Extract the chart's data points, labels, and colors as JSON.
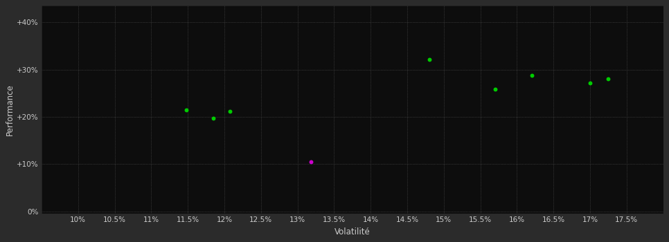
{
  "background_color": "#2b2b2b",
  "plot_bg_color": "#0d0d0d",
  "grid_color": "#555555",
  "xlabel": "Volatilité",
  "ylabel": "Performance",
  "xlim": [
    0.095,
    0.18
  ],
  "ylim": [
    -0.005,
    0.435
  ],
  "xticks": [
    0.1,
    0.105,
    0.11,
    0.115,
    0.12,
    0.125,
    0.13,
    0.135,
    0.14,
    0.145,
    0.15,
    0.155,
    0.16,
    0.165,
    0.17,
    0.175
  ],
  "yticks": [
    0.0,
    0.1,
    0.2,
    0.3,
    0.4
  ],
  "ytick_labels": [
    "0%",
    "+10%",
    "+20%",
    "+30%",
    "+40%"
  ],
  "xtick_labels": [
    "10%",
    "10.5%",
    "11%",
    "11.5%",
    "12%",
    "12.5%",
    "13%",
    "13.5%",
    "14%",
    "14.5%",
    "15%",
    "15.5%",
    "16%",
    "16.5%",
    "17%",
    "17.5%"
  ],
  "green_points": [
    [
      0.1148,
      0.215
    ],
    [
      0.1185,
      0.197
    ],
    [
      0.1208,
      0.211
    ],
    [
      0.148,
      0.322
    ],
    [
      0.157,
      0.258
    ],
    [
      0.162,
      0.287
    ],
    [
      0.17,
      0.272
    ],
    [
      0.1725,
      0.28
    ]
  ],
  "magenta_points": [
    [
      0.1318,
      0.105
    ]
  ],
  "green_color": "#00cc00",
  "magenta_color": "#cc00cc",
  "text_color": "#cccccc",
  "marker_size": 18,
  "grid_linewidth": 0.5,
  "font_size_ticks": 7.5,
  "font_size_labels": 8.5
}
